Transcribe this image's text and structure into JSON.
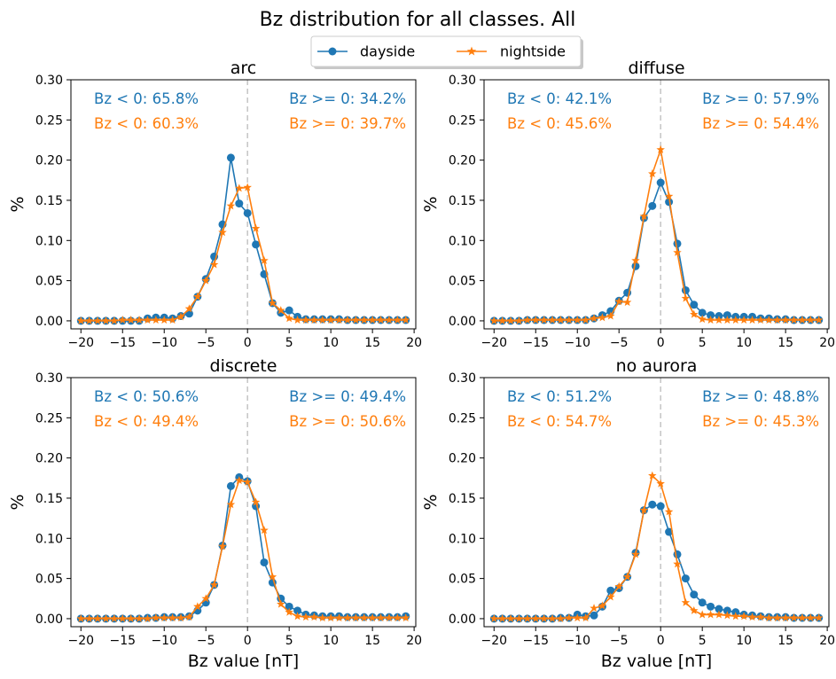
{
  "figure": {
    "title": "Bz distribution for all classes. All",
    "legend": [
      {
        "name": "dayside",
        "color": "#1f77b4",
        "marker": "circle"
      },
      {
        "name": "nightside",
        "color": "#ff7f0e",
        "marker": "star"
      }
    ]
  },
  "chart_data": [
    {
      "type": "line",
      "title": "arc",
      "xlabel": "",
      "ylabel": "%",
      "xlim": [
        -21.2,
        20.2
      ],
      "ylim": [
        -0.01,
        0.3
      ],
      "xticks": [
        -20,
        -15,
        -10,
        -5,
        0,
        5,
        10,
        15,
        20
      ],
      "yticks": [
        0.0,
        0.05,
        0.1,
        0.15,
        0.2,
        0.25,
        0.3
      ],
      "vline_x": 0,
      "x": [
        -20,
        -19,
        -18,
        -17,
        -16,
        -15,
        -14,
        -13,
        -12,
        -11,
        -10,
        -9,
        -8,
        -7,
        -6,
        -5,
        -4,
        -3,
        -2,
        -1,
        0,
        1,
        2,
        3,
        4,
        5,
        6,
        7,
        8,
        9,
        10,
        11,
        12,
        13,
        14,
        15,
        16,
        17,
        18,
        19
      ],
      "series": [
        {
          "name": "dayside",
          "color": "#1f77b4",
          "marker": "circle",
          "values": [
            0.0,
            0.0,
            0.0,
            0.0,
            0.0,
            0.0,
            0.0,
            0.0,
            0.003,
            0.004,
            0.004,
            0.003,
            0.006,
            0.009,
            0.03,
            0.052,
            0.08,
            0.12,
            0.203,
            0.146,
            0.134,
            0.095,
            0.058,
            0.022,
            0.01,
            0.013,
            0.005,
            0.002,
            0.002,
            0.002,
            0.002,
            0.002,
            0.001,
            0.001,
            0.001,
            0.001,
            0.001,
            0.001,
            0.001,
            0.001
          ]
        },
        {
          "name": "nightside",
          "color": "#ff7f0e",
          "marker": "star",
          "values": [
            0.0,
            0.0,
            0.0,
            0.0,
            0.0,
            0.001,
            0.001,
            0.001,
            0.001,
            0.001,
            0.001,
            0.001,
            0.005,
            0.015,
            0.03,
            0.05,
            0.07,
            0.11,
            0.143,
            0.165,
            0.166,
            0.115,
            0.075,
            0.022,
            0.013,
            0.003,
            0.001,
            0.001,
            0.001,
            0.001,
            0.001,
            0.001,
            0.001,
            0.001,
            0.001,
            0.001,
            0.001,
            0.001,
            0.001,
            0.001
          ]
        }
      ],
      "annotations": [
        {
          "series": "dayside",
          "neg": "Bz < 0:  65.8%",
          "pos": "Bz >= 0: 34.2%"
        },
        {
          "series": "nightside",
          "neg": "Bz < 0:  60.3%",
          "pos": "Bz >= 0: 39.7%"
        }
      ]
    },
    {
      "type": "line",
      "title": "diffuse",
      "xlabel": "",
      "ylabel": "%",
      "xlim": [
        -21.2,
        20.2
      ],
      "ylim": [
        -0.01,
        0.3
      ],
      "xticks": [
        -20,
        -15,
        -10,
        -5,
        0,
        5,
        10,
        15,
        20
      ],
      "yticks": [
        0.0,
        0.05,
        0.1,
        0.15,
        0.2,
        0.25,
        0.3
      ],
      "vline_x": 0,
      "x": [
        -20,
        -19,
        -18,
        -17,
        -16,
        -15,
        -14,
        -13,
        -12,
        -11,
        -10,
        -9,
        -8,
        -7,
        -6,
        -5,
        -4,
        -3,
        -2,
        -1,
        0,
        1,
        2,
        3,
        4,
        5,
        6,
        7,
        8,
        9,
        10,
        11,
        12,
        13,
        14,
        15,
        16,
        17,
        18,
        19
      ],
      "series": [
        {
          "name": "dayside",
          "color": "#1f77b4",
          "marker": "circle",
          "values": [
            0.0,
            0.0,
            0.0,
            0.0,
            0.001,
            0.001,
            0.001,
            0.001,
            0.001,
            0.001,
            0.001,
            0.001,
            0.003,
            0.007,
            0.012,
            0.025,
            0.035,
            0.068,
            0.128,
            0.143,
            0.172,
            0.148,
            0.096,
            0.038,
            0.02,
            0.01,
            0.007,
            0.006,
            0.007,
            0.005,
            0.005,
            0.005,
            0.003,
            0.003,
            0.002,
            0.002,
            0.001,
            0.001,
            0.001,
            0.001
          ]
        },
        {
          "name": "nightside",
          "color": "#ff7f0e",
          "marker": "star",
          "values": [
            0.0,
            0.0,
            0.0,
            0.0,
            0.001,
            0.001,
            0.001,
            0.001,
            0.001,
            0.001,
            0.001,
            0.001,
            0.003,
            0.004,
            0.006,
            0.024,
            0.023,
            0.075,
            0.13,
            0.183,
            0.213,
            0.155,
            0.085,
            0.028,
            0.008,
            0.002,
            0.001,
            0.001,
            0.001,
            0.001,
            0.001,
            0.001,
            0.001,
            0.001,
            0.001,
            0.001,
            0.001,
            0.001,
            0.001,
            0.001
          ]
        }
      ],
      "annotations": [
        {
          "series": "dayside",
          "neg": "Bz < 0:  42.1%",
          "pos": "Bz >= 0: 57.9%"
        },
        {
          "series": "nightside",
          "neg": "Bz < 0:  45.6%",
          "pos": "Bz >= 0: 54.4%"
        }
      ]
    },
    {
      "type": "line",
      "title": "discrete",
      "xlabel": "Bz value [nT]",
      "ylabel": "%",
      "xlim": [
        -21.2,
        20.2
      ],
      "ylim": [
        -0.01,
        0.3
      ],
      "xticks": [
        -20,
        -15,
        -10,
        -5,
        0,
        5,
        10,
        15,
        20
      ],
      "yticks": [
        0.0,
        0.05,
        0.1,
        0.15,
        0.2,
        0.25,
        0.3
      ],
      "vline_x": 0,
      "x": [
        -20,
        -19,
        -18,
        -17,
        -16,
        -15,
        -14,
        -13,
        -12,
        -11,
        -10,
        -9,
        -8,
        -7,
        -6,
        -5,
        -4,
        -3,
        -2,
        -1,
        0,
        1,
        2,
        3,
        4,
        5,
        6,
        7,
        8,
        9,
        10,
        11,
        12,
        13,
        14,
        15,
        16,
        17,
        18,
        19
      ],
      "series": [
        {
          "name": "dayside",
          "color": "#1f77b4",
          "marker": "circle",
          "values": [
            0.0,
            0.0,
            0.0,
            0.0,
            0.0,
            0.0,
            0.0,
            0.0,
            0.001,
            0.001,
            0.002,
            0.002,
            0.002,
            0.003,
            0.01,
            0.02,
            0.042,
            0.091,
            0.165,
            0.176,
            0.171,
            0.14,
            0.07,
            0.045,
            0.025,
            0.015,
            0.01,
            0.005,
            0.004,
            0.003,
            0.003,
            0.003,
            0.002,
            0.002,
            0.002,
            0.002,
            0.002,
            0.002,
            0.002,
            0.003
          ]
        },
        {
          "name": "nightside",
          "color": "#ff7f0e",
          "marker": "star",
          "values": [
            0.0,
            0.0,
            0.0,
            0.0,
            0.0,
            0.0,
            0.0,
            0.0,
            0.0,
            0.001,
            0.001,
            0.001,
            0.001,
            0.002,
            0.015,
            0.025,
            0.042,
            0.09,
            0.142,
            0.172,
            0.17,
            0.145,
            0.11,
            0.052,
            0.018,
            0.008,
            0.003,
            0.002,
            0.002,
            0.001,
            0.001,
            0.001,
            0.001,
            0.001,
            0.001,
            0.001,
            0.001,
            0.001,
            0.001,
            0.001
          ]
        }
      ],
      "annotations": [
        {
          "series": "dayside",
          "neg": "Bz < 0:  50.6%",
          "pos": "Bz >= 0: 49.4%"
        },
        {
          "series": "nightside",
          "neg": "Bz < 0:  49.4%",
          "pos": "Bz >= 0: 50.6%"
        }
      ]
    },
    {
      "type": "line",
      "title": "no aurora",
      "xlabel": "Bz value [nT]",
      "ylabel": "%",
      "xlim": [
        -21.2,
        20.2
      ],
      "ylim": [
        -0.01,
        0.3
      ],
      "xticks": [
        -20,
        -15,
        -10,
        -5,
        0,
        5,
        10,
        15,
        20
      ],
      "yticks": [
        0.0,
        0.05,
        0.1,
        0.15,
        0.2,
        0.25,
        0.3
      ],
      "vline_x": 0,
      "x": [
        -20,
        -19,
        -18,
        -17,
        -16,
        -15,
        -14,
        -13,
        -12,
        -11,
        -10,
        -9,
        -8,
        -7,
        -6,
        -5,
        -4,
        -3,
        -2,
        -1,
        0,
        1,
        2,
        3,
        4,
        5,
        6,
        7,
        8,
        9,
        10,
        11,
        12,
        13,
        14,
        15,
        16,
        17,
        18,
        19
      ],
      "series": [
        {
          "name": "dayside",
          "color": "#1f77b4",
          "marker": "circle",
          "values": [
            0.0,
            0.0,
            0.0,
            0.0,
            0.0,
            0.0,
            0.0,
            0.0,
            0.001,
            0.001,
            0.005,
            0.003,
            0.004,
            0.015,
            0.035,
            0.038,
            0.052,
            0.082,
            0.135,
            0.142,
            0.14,
            0.108,
            0.08,
            0.05,
            0.03,
            0.02,
            0.015,
            0.012,
            0.01,
            0.008,
            0.005,
            0.004,
            0.003,
            0.002,
            0.002,
            0.002,
            0.001,
            0.001,
            0.001,
            0.001
          ]
        },
        {
          "name": "nightside",
          "color": "#ff7f0e",
          "marker": "star",
          "values": [
            0.0,
            0.0,
            0.0,
            0.0,
            0.0,
            0.0,
            0.0,
            0.0,
            0.0,
            0.001,
            0.001,
            0.001,
            0.013,
            0.016,
            0.027,
            0.04,
            0.052,
            0.08,
            0.135,
            0.178,
            0.168,
            0.133,
            0.068,
            0.02,
            0.01,
            0.005,
            0.005,
            0.005,
            0.004,
            0.003,
            0.003,
            0.002,
            0.002,
            0.001,
            0.001,
            0.001,
            0.001,
            0.001,
            0.001,
            0.001
          ]
        }
      ],
      "annotations": [
        {
          "series": "dayside",
          "neg": "Bz < 0:  51.2%",
          "pos": "Bz >= 0: 48.8%"
        },
        {
          "series": "nightside",
          "neg": "Bz < 0:  54.7%",
          "pos": "Bz >= 0: 45.3%"
        }
      ]
    }
  ]
}
